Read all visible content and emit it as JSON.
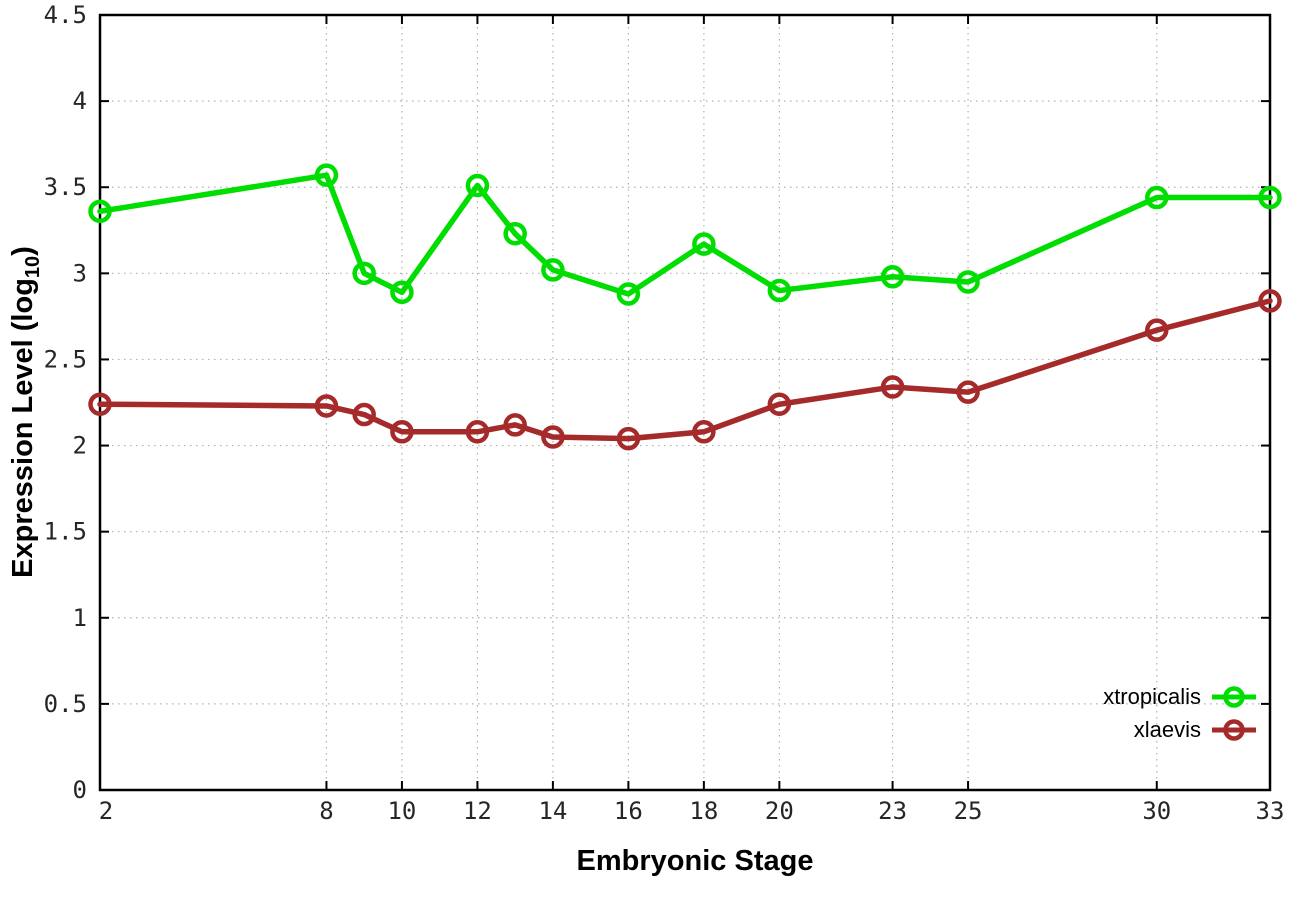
{
  "chart_data": {
    "type": "line",
    "title": "",
    "xlabel": "Embryonic Stage",
    "ylabel": "Expression Level (log10)",
    "ylabel_parts": {
      "prefix": "Expression Level (log",
      "sub": "10",
      "suffix": ")"
    },
    "xlim": [
      2,
      33
    ],
    "ylim": [
      0,
      4.5
    ],
    "grid": true,
    "legend_position": "bottom-right-inside",
    "x": [
      2,
      8,
      9,
      10,
      12,
      13,
      14,
      16,
      18,
      20,
      23,
      25,
      30,
      33
    ],
    "xticks": [
      2,
      8,
      10,
      12,
      14,
      16,
      18,
      20,
      23,
      25,
      30,
      33
    ],
    "yticks": [
      0,
      0.5,
      1,
      1.5,
      2,
      2.5,
      3,
      3.5,
      4,
      4.5
    ],
    "ytick_labels": [
      "0",
      "0.5",
      "1",
      "1.5",
      "2",
      "2.5",
      "3",
      "3.5",
      "4",
      "4.5"
    ],
    "series": [
      {
        "name": "xtropicalis",
        "color": "#00dd00",
        "marker": "open-circle",
        "values": [
          3.36,
          3.57,
          3.0,
          2.89,
          3.51,
          3.23,
          3.02,
          2.88,
          3.17,
          2.9,
          2.98,
          2.95,
          3.44,
          3.44
        ]
      },
      {
        "name": "xlaevis",
        "color": "#a52a2a",
        "marker": "open-circle",
        "values": [
          2.24,
          2.23,
          2.18,
          2.08,
          2.08,
          2.12,
          2.05,
          2.04,
          2.08,
          2.24,
          2.34,
          2.31,
          2.67,
          2.84
        ]
      }
    ],
    "colors": {
      "grid": "#b0b0b0",
      "axis": "#000000",
      "tick_text": "#262626"
    }
  }
}
